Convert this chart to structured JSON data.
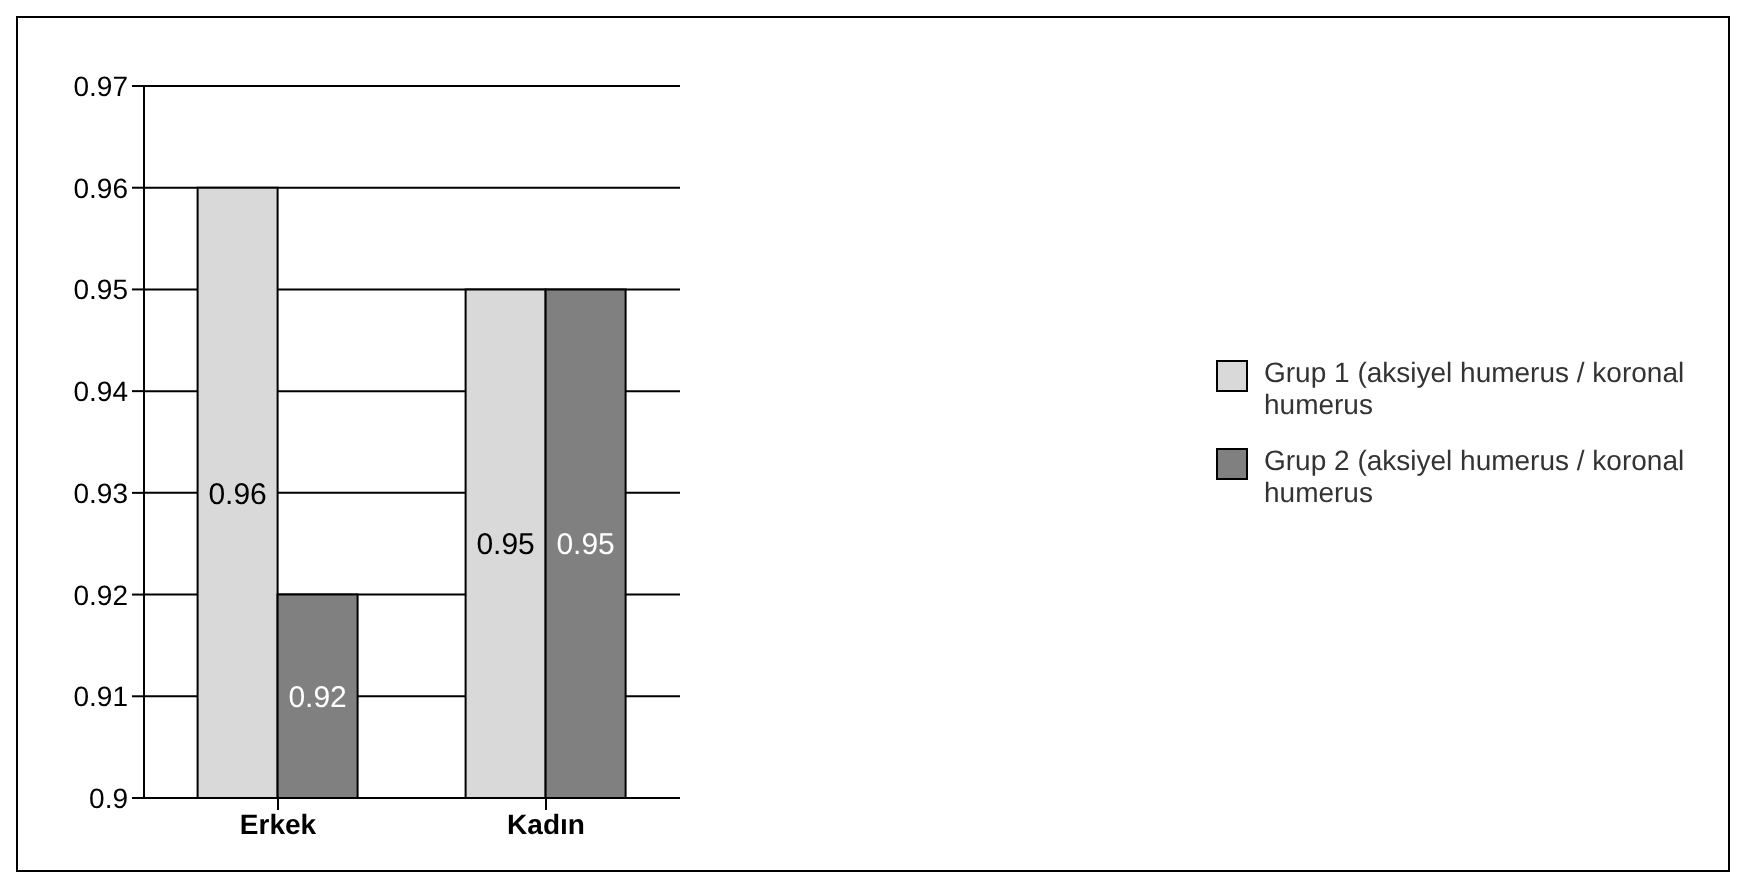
{
  "chart_data": {
    "type": "bar",
    "categories": [
      "Erkek",
      "Kadın"
    ],
    "series": [
      {
        "name": "Grup 1 (aksiyel humerus / koronal humerus",
        "color": "#d9d9d9",
        "values": [
          0.96,
          0.95
        ]
      },
      {
        "name": "Grup 2 (aksiyel humerus / koronal humerus",
        "color": "#808080",
        "values": [
          0.92,
          0.95
        ]
      }
    ],
    "ylim": [
      0.9,
      0.97
    ],
    "yticks": [
      0.9,
      0.91,
      0.92,
      0.93,
      0.94,
      0.95,
      0.96,
      0.97
    ],
    "grid": "y",
    "legend": "right",
    "data_labels": true
  }
}
